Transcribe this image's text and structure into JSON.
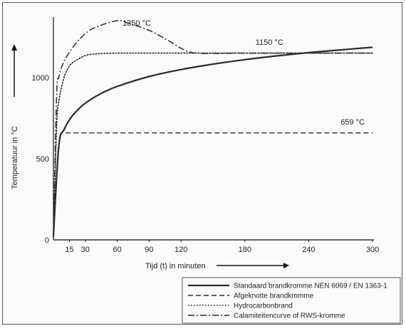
{
  "chart_data": {
    "type": "line",
    "title": "",
    "xlabel": "Tijd (t) in minuten",
    "ylabel": "Temperatuur  in °C",
    "xlim": [
      0,
      300
    ],
    "ylim": [
      0,
      1350
    ],
    "xticks": [
      15,
      30,
      60,
      90,
      120,
      180,
      240,
      300
    ],
    "yticks": [
      0,
      500,
      1000
    ],
    "grid": false,
    "legend_position": "bottom-right",
    "annotations": [
      {
        "text": "1350 °C",
        "x": 65,
        "y": 1320
      },
      {
        "text": "1150 °C",
        "x": 190,
        "y": 1200
      },
      {
        "text": "659 °C",
        "x": 270,
        "y": 710
      }
    ],
    "series": [
      {
        "name": "Standaard brandkromme NEN 6069 / EN 1363-1",
        "style": "solid",
        "x": [
          0,
          5,
          10,
          15,
          20,
          30,
          45,
          60,
          90,
          120,
          150,
          180,
          210,
          240,
          270,
          300
        ],
        "y": [
          20,
          576,
          678,
          739,
          781,
          842,
          902,
          945,
          1006,
          1049,
          1082,
          1110,
          1133,
          1153,
          1170,
          1186
        ]
      },
      {
        "name": "Afgeknotte brandkromme",
        "style": "dashed",
        "x": [
          0,
          5,
          8,
          10,
          20,
          60,
          120,
          180,
          240,
          300
        ],
        "y": [
          20,
          576,
          659,
          659,
          659,
          659,
          659,
          659,
          659,
          659
        ]
      },
      {
        "name": "Hydrocarbonbrand",
        "style": "dotted",
        "x": [
          0,
          3,
          5,
          10,
          15,
          20,
          30,
          40,
          60,
          120,
          180,
          240,
          300
        ],
        "y": [
          20,
          700,
          850,
          1000,
          1070,
          1100,
          1135,
          1145,
          1150,
          1150,
          1150,
          1150,
          1150
        ]
      },
      {
        "name": "Calamiteitencurve of RWS-kromme",
        "style": "dashdot",
        "x": [
          0,
          3,
          5,
          10,
          20,
          30,
          40,
          60,
          70,
          90,
          110,
          120,
          135,
          180,
          240,
          300
        ],
        "y": [
          20,
          890,
          1000,
          1100,
          1200,
          1270,
          1310,
          1350,
          1335,
          1290,
          1220,
          1180,
          1150,
          1150,
          1150,
          1150
        ]
      }
    ]
  }
}
